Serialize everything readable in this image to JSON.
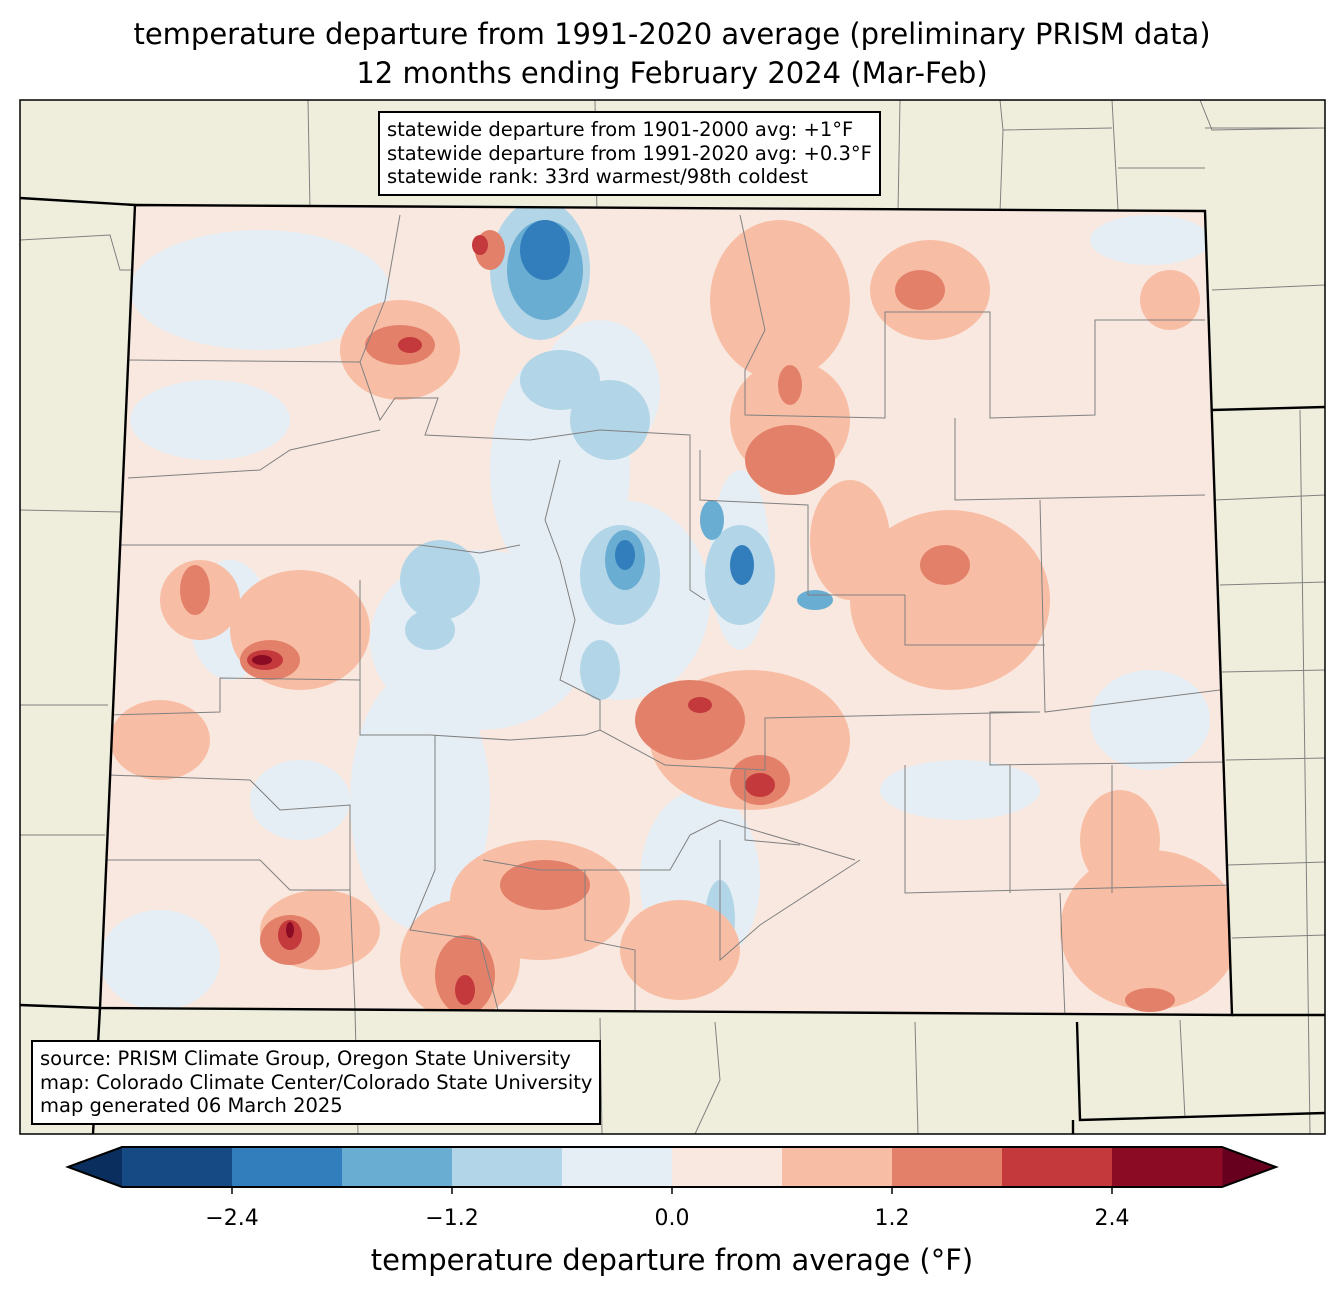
{
  "title": {
    "line1": "temperature departure from 1991-2020 average (preliminary PRISM data)",
    "line2": "12 months ending February 2024 (Mar-Feb)"
  },
  "stats_box": {
    "line1": "statewide departure from 1901-2000 avg: +1°F",
    "line2": "statewide departure from 1991-2020 avg: +0.3°F",
    "line3": "statewide rank: 33rd warmest/98th coldest"
  },
  "source_box": {
    "line1": "source: PRISM Climate Group, Oregon State University",
    "line2": "map: Colorado Climate Center/Colorado State University",
    "line3": "map generated 06 March 2025"
  },
  "colorbar": {
    "label": "temperature departure from average (°F)",
    "levels": [
      -3.0,
      -2.4,
      -1.8,
      -1.2,
      -0.6,
      0.0,
      0.6,
      1.2,
      1.8,
      2.4,
      3.0
    ],
    "ticks": [
      "−2.4",
      "−1.2",
      "0.0",
      "1.2",
      "2.4"
    ],
    "tick_values": [
      -2.4,
      -1.2,
      0.0,
      1.2,
      2.4
    ],
    "colors": [
      "#164a85",
      "#327ebc",
      "#6aadd2",
      "#b2d5e7",
      "#e5eef5",
      "#f9e8df",
      "#f8bea5",
      "#e3806a",
      "#c4393b",
      "#8b0b25"
    ],
    "extend_low_color": "#0a2f5f",
    "extend_high_color": "#67001f"
  },
  "map_colors": {
    "land": "#efeedc",
    "county_line": "#808080"
  }
}
